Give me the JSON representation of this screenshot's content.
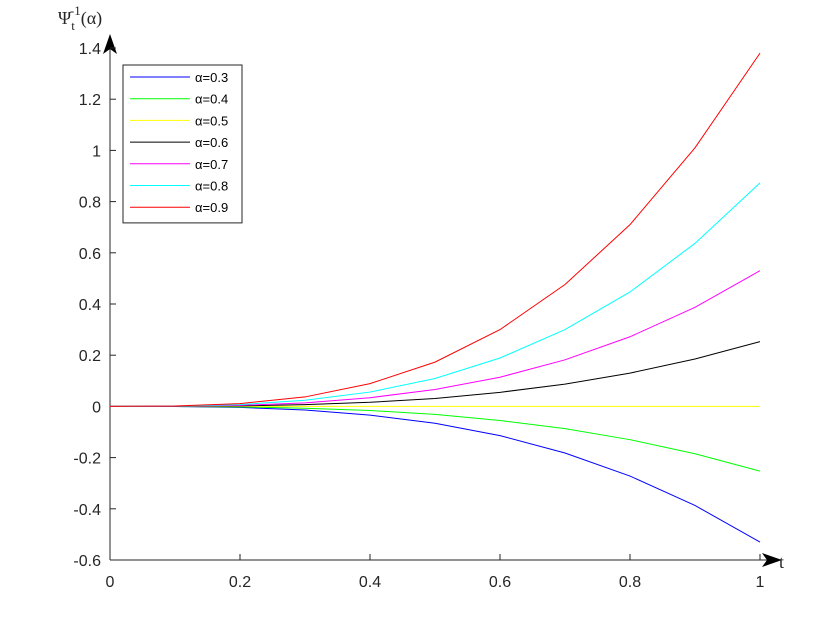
{
  "chart_data": {
    "type": "line",
    "xlabel": "t",
    "ylabel": {
      "base": "Ψ",
      "subscript": "t",
      "superscript": "-1",
      "argument": "(α)"
    },
    "xlim": [
      0,
      1
    ],
    "ylim": [
      -0.6,
      1.4
    ],
    "xticks": [
      "0",
      "0.2",
      "0.4",
      "0.6",
      "0.8",
      "1"
    ],
    "xtick_values": [
      0,
      0.2,
      0.4,
      0.6,
      0.8,
      1
    ],
    "yticks": [
      "-0.6",
      "-0.4",
      "-0.2",
      "0",
      "0.2",
      "0.4",
      "0.6",
      "0.8",
      "1",
      "1.2",
      "1.4"
    ],
    "ytick_values": [
      -0.6,
      -0.4,
      -0.2,
      0,
      0.2,
      0.4,
      0.6,
      0.8,
      1,
      1.2,
      1.4
    ],
    "grid": false,
    "legend_position": "top-left",
    "x": [
      0,
      0.1,
      0.2,
      0.3,
      0.4,
      0.5,
      0.6,
      0.7,
      0.8,
      0.9,
      1.0
    ],
    "series": [
      {
        "name": "α=0.3",
        "color": "#0000ff",
        "values": [
          0,
          -0.0005,
          -0.004,
          -0.014,
          -0.034,
          -0.066,
          -0.114,
          -0.182,
          -0.272,
          -0.387,
          -0.53
        ]
      },
      {
        "name": "α=0.4",
        "color": "#00ff00",
        "values": [
          0,
          -0.0003,
          -0.002,
          -0.007,
          -0.016,
          -0.031,
          -0.055,
          -0.087,
          -0.13,
          -0.185,
          -0.253
        ]
      },
      {
        "name": "α=0.5",
        "color": "#ffff00",
        "values": [
          0,
          0,
          0,
          0,
          0,
          0,
          0,
          0,
          0,
          0,
          0
        ]
      },
      {
        "name": "α=0.6",
        "color": "#000000",
        "values": [
          0,
          0.0003,
          0.002,
          0.007,
          0.016,
          0.031,
          0.055,
          0.087,
          0.13,
          0.185,
          0.253
        ]
      },
      {
        "name": "α=0.7",
        "color": "#ff00ff",
        "values": [
          0,
          0.0005,
          0.004,
          0.014,
          0.034,
          0.066,
          0.114,
          0.182,
          0.272,
          0.387,
          0.53
        ]
      },
      {
        "name": "α=0.8",
        "color": "#00ffff",
        "values": [
          0,
          0.0009,
          0.007,
          0.024,
          0.056,
          0.109,
          0.189,
          0.3,
          0.447,
          0.637,
          0.873
        ]
      },
      {
        "name": "α=0.9",
        "color": "#ff0000",
        "values": [
          0,
          0.0014,
          0.011,
          0.037,
          0.089,
          0.173,
          0.3,
          0.476,
          0.71,
          1.01,
          1.38
        ]
      }
    ]
  }
}
